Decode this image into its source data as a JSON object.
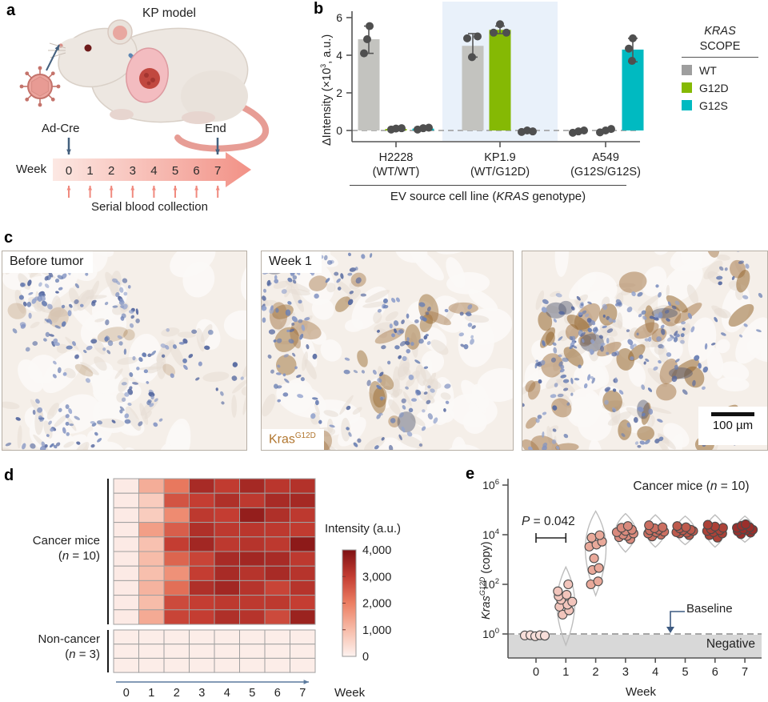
{
  "panel_a": {
    "label": "a",
    "title": "KP model",
    "injection_label": "Ad-Cre",
    "end_label": "End",
    "week_label": "Week",
    "weeks": [
      "0",
      "1",
      "2",
      "3",
      "4",
      "5",
      "6",
      "7"
    ],
    "caption": "Serial blood collection"
  },
  "panel_b": {
    "label": "b",
    "ylabel": {
      "pre": "ΔIntensity (×10",
      "sup": "3",
      "post": ", a.u.)"
    },
    "xlabel": {
      "pre": "EV source cell line (",
      "italic": "KRAS",
      "post": " genotype)"
    },
    "legend": {
      "title_line1": "KRAS",
      "title_line2": "SCOPE",
      "items": [
        {
          "label": "WT",
          "color": "#9e9e9e"
        },
        {
          "label": "G12D",
          "color": "#85b904"
        },
        {
          "label": "G12S",
          "color": "#00bac1"
        }
      ]
    }
  },
  "panel_c": {
    "label": "c",
    "images": [
      {
        "tag": "Before tumor"
      },
      {
        "tag": "Week 1",
        "stain_gene": "Kras",
        "stain_sup": "G12D"
      },
      {
        "scalebar": "100 µm"
      }
    ]
  },
  "panel_d": {
    "label": "d",
    "row_groups": [
      {
        "line1": "Cancer mice",
        "n_pre": "(",
        "n": "n",
        "n_post": " = 10)"
      },
      {
        "line1": "Non-cancer",
        "n_pre": "(",
        "n": "n",
        "n_post": " = 3)"
      }
    ],
    "colorbar_title": "Intensity (a.u.)",
    "week_label": "Week"
  },
  "panel_e": {
    "label": "e",
    "title": {
      "pre": "Cancer mice (",
      "n": "n",
      "post": " = 10)"
    },
    "ylabel": {
      "gene": "Kras",
      "sup": "G12D",
      "rest": " (copy)"
    },
    "p_label": {
      "p": "P",
      "rest": " = 0.042"
    },
    "baseline_label": "Baseline",
    "negative_label": "Negative",
    "week_label": "Week"
  },
  "chart_data": [
    {
      "id": "panel_b",
      "type": "bar",
      "title": "",
      "ylabel": "ΔIntensity (×10³, a.u.)",
      "xlabel": "EV source cell line (KRAS genotype)",
      "ylim": [
        -0.6,
        6.3
      ],
      "yticks": [
        0,
        2,
        4,
        6
      ],
      "categories": [
        [
          "H2228",
          "(WT/WT)"
        ],
        [
          "KP1.9",
          "(WT/G12D)"
        ],
        [
          "A549",
          "(G12S/G12S)"
        ]
      ],
      "highlight_group_index": 1,
      "highlight_color": "#e9f1fa",
      "zero_line": 0,
      "legend_position": "right",
      "series": [
        {
          "name": "WT",
          "bar_color": "#c3c3bf",
          "bars": [
            4.85,
            4.5,
            -0.05
          ],
          "errors": [
            [
              4.1,
              5.55
            ],
            [
              3.9,
              5.15
            ],
            null
          ],
          "dots": [
            [
              [
                4.1,
                -6
              ],
              [
                4.85,
                -2
              ],
              [
                5.55,
                1
              ]
            ],
            [
              [
                3.9,
                -1
              ],
              [
                4.9,
                -7
              ],
              [
                5.0,
                6
              ]
            ],
            [
              [
                -0.12,
                -7
              ],
              [
                -0.05,
                0
              ],
              [
                0.0,
                7
              ]
            ]
          ]
        },
        {
          "name": "G12D",
          "bar_color": "#85b904",
          "bars": [
            0.08,
            5.35,
            -0.05
          ],
          "errors": [
            null,
            [
              5.15,
              5.55
            ],
            null
          ],
          "dots": [
            [
              [
                0.05,
                -6
              ],
              [
                0.1,
                0
              ],
              [
                0.12,
                7
              ]
            ],
            [
              [
                5.2,
                -8
              ],
              [
                5.65,
                0
              ],
              [
                5.2,
                8
              ]
            ],
            [
              [
                -0.1,
                -7
              ],
              [
                0.0,
                0
              ],
              [
                0.08,
                7
              ]
            ]
          ]
        },
        {
          "name": "G12S",
          "bar_color": "#00bac1",
          "bars": [
            0.1,
            -0.05,
            4.3
          ],
          "errors": [
            null,
            null,
            [
              3.65,
              4.9
            ]
          ],
          "dots": [
            [
              [
                0.05,
                -7
              ],
              [
                0.12,
                0
              ],
              [
                0.15,
                7
              ]
            ],
            [
              [
                -0.08,
                -7
              ],
              [
                0.0,
                0
              ],
              [
                -0.05,
                7
              ]
            ],
            [
              [
                3.7,
                -1
              ],
              [
                4.35,
                -5
              ],
              [
                4.9,
                0
              ]
            ]
          ]
        }
      ]
    },
    {
      "id": "panel_d",
      "type": "heatmap",
      "xlabel": "Week",
      "weeks": [
        "0",
        "1",
        "2",
        "3",
        "4",
        "5",
        "6",
        "7"
      ],
      "colorbar": {
        "title": "Intensity (a.u.)",
        "min": 0,
        "max": 4000,
        "ticks": [
          4000,
          3000,
          2000,
          1000,
          0
        ],
        "tick_labels": [
          "4,000",
          "3,000",
          "2,000",
          "1,000",
          "0"
        ]
      },
      "color_stops": [
        [
          0,
          "#fdf2ef"
        ],
        [
          1000,
          "#f7bca9"
        ],
        [
          2000,
          "#ec7f63"
        ],
        [
          3000,
          "#c43d32"
        ],
        [
          4000,
          "#7f1113"
        ]
      ],
      "cancer_matrix": [
        [
          150,
          1250,
          2100,
          3400,
          3050,
          3450,
          3150,
          3250
        ],
        [
          150,
          700,
          2650,
          3000,
          3300,
          3100,
          3400,
          3450
        ],
        [
          150,
          700,
          1800,
          3100,
          3000,
          3700,
          3300,
          3100
        ],
        [
          150,
          1500,
          2500,
          3300,
          3100,
          3150,
          3100,
          3050
        ],
        [
          150,
          900,
          3000,
          3500,
          3100,
          3200,
          3100,
          3800
        ],
        [
          150,
          1000,
          2400,
          2900,
          3400,
          3500,
          3400,
          3100
        ],
        [
          150,
          950,
          1700,
          3000,
          3400,
          3200,
          3400,
          3200
        ],
        [
          150,
          1150,
          2250,
          3300,
          3500,
          3200,
          2900,
          3200
        ],
        [
          150,
          1000,
          2800,
          3000,
          3100,
          3100,
          3100,
          3000
        ],
        [
          150,
          1300,
          2900,
          3000,
          3300,
          3200,
          2800,
          3600
        ]
      ],
      "non_cancer_matrix": [
        [
          100,
          100,
          100,
          100,
          100,
          100,
          100,
          100
        ],
        [
          100,
          100,
          100,
          100,
          100,
          100,
          100,
          100
        ],
        [
          100,
          100,
          100,
          100,
          100,
          100,
          100,
          100
        ]
      ]
    },
    {
      "id": "panel_e",
      "type": "violin-scatter",
      "title": "Cancer mice (n = 10)",
      "ylabel": "Kras G12D (copy)",
      "xlabel": "Week",
      "yscale": "log10",
      "yticks_log": [
        0,
        2,
        4,
        6
      ],
      "weeks": [
        "0",
        "1",
        "2",
        "3",
        "4",
        "5",
        "6",
        "7"
      ],
      "p_value": "P = 0.042",
      "p_compare_weeks": [
        0,
        1
      ],
      "baseline": 1,
      "negative_region_below": 1,
      "dot_colors": [
        "#f7ded9",
        "#f2c5bc",
        "#e9a99a",
        "#d98a7d",
        "#cb6f61",
        "#bd5a4d",
        "#ac4238",
        "#9b2f2b"
      ],
      "violins": [
        null,
        {
          "lo": -0.45,
          "hi": 2.7,
          "peak": 1.3,
          "hw": 13
        },
        {
          "lo": 1.55,
          "hi": 4.95,
          "peak": 3.6,
          "hw": 15
        },
        {
          "lo": 3.3,
          "hi": 4.85,
          "peak": 4.1,
          "hw": 15
        },
        {
          "lo": 3.5,
          "hi": 4.8,
          "peak": 4.15,
          "hw": 14
        },
        {
          "lo": 3.6,
          "hi": 4.75,
          "peak": 4.15,
          "hw": 14
        },
        {
          "lo": 3.5,
          "hi": 4.8,
          "peak": 4.15,
          "hw": 14
        },
        {
          "lo": 3.7,
          "hi": 4.75,
          "peak": 4.2,
          "hw": 13
        }
      ],
      "points_log": [
        [
          [
            -0.06,
            -14
          ],
          [
            -0.05,
            -7
          ],
          [
            -0.09,
            -1
          ],
          [
            -0.05,
            5
          ],
          [
            -0.07,
            11
          ]
        ],
        [
          [
            0.78,
            -4
          ],
          [
            0.95,
            4
          ],
          [
            1.1,
            -8
          ],
          [
            1.18,
            2
          ],
          [
            1.3,
            8
          ],
          [
            1.38,
            -6
          ],
          [
            1.52,
            -9
          ],
          [
            1.58,
            1
          ],
          [
            1.72,
            -10
          ],
          [
            2.0,
            3
          ]
        ],
        [
          [
            2.0,
            -6
          ],
          [
            2.12,
            3
          ],
          [
            2.58,
            -4
          ],
          [
            2.66,
            4
          ],
          [
            3.05,
            -2
          ],
          [
            3.52,
            -8
          ],
          [
            3.6,
            1
          ],
          [
            3.72,
            8
          ],
          [
            3.88,
            -5
          ],
          [
            3.98,
            5
          ]
        ],
        [
          [
            3.82,
            6
          ],
          [
            3.9,
            -8
          ],
          [
            3.95,
            2
          ],
          [
            4.0,
            -3
          ],
          [
            4.05,
            10
          ],
          [
            4.1,
            -11
          ],
          [
            4.15,
            0
          ],
          [
            4.2,
            8
          ],
          [
            4.28,
            -5
          ],
          [
            4.35,
            3
          ]
        ],
        [
          [
            3.93,
            -4
          ],
          [
            4.0,
            7
          ],
          [
            4.05,
            -9
          ],
          [
            4.1,
            1
          ],
          [
            4.12,
            11
          ],
          [
            4.18,
            -7
          ],
          [
            4.2,
            4
          ],
          [
            4.26,
            -1
          ],
          [
            4.3,
            9
          ],
          [
            4.38,
            -8
          ]
        ],
        [
          [
            3.98,
            5
          ],
          [
            4.05,
            -7
          ],
          [
            4.08,
            2
          ],
          [
            4.1,
            -11
          ],
          [
            4.15,
            10
          ],
          [
            4.18,
            -3
          ],
          [
            4.2,
            7
          ],
          [
            4.26,
            -7
          ],
          [
            4.3,
            1
          ],
          [
            4.35,
            -10
          ]
        ],
        [
          [
            3.88,
            3
          ],
          [
            3.98,
            -7
          ],
          [
            4.05,
            9
          ],
          [
            4.1,
            -2
          ],
          [
            4.15,
            -10
          ],
          [
            4.18,
            6
          ],
          [
            4.22,
            -5
          ],
          [
            4.28,
            10
          ],
          [
            4.33,
            0
          ],
          [
            4.4,
            -9
          ]
        ],
        [
          [
            4.02,
            -5
          ],
          [
            4.08,
            7
          ],
          [
            4.14,
            -9
          ],
          [
            4.18,
            2
          ],
          [
            4.2,
            10
          ],
          [
            4.22,
            -2
          ],
          [
            4.28,
            -10
          ],
          [
            4.3,
            6
          ],
          [
            4.36,
            -4
          ],
          [
            4.42,
            1
          ]
        ]
      ]
    }
  ]
}
